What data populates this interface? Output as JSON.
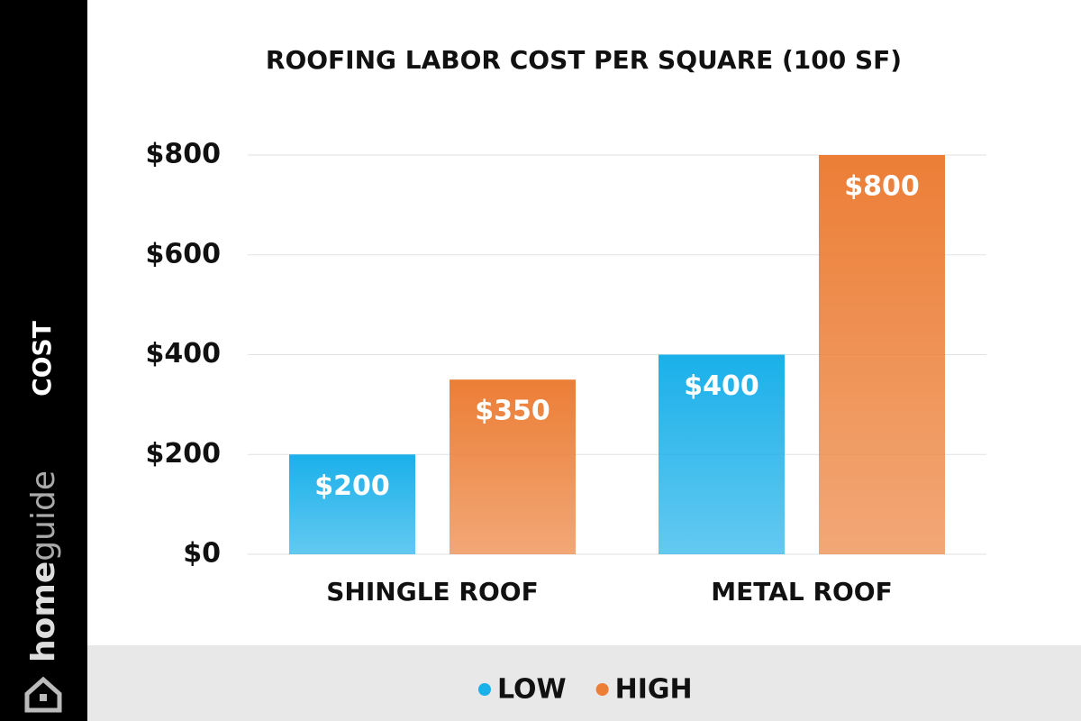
{
  "chart_data": {
    "type": "bar",
    "title": "ROOFING LABOR COST PER SQUARE (100 SF)",
    "y_label": "COST",
    "categories": [
      "SHINGLE ROOF",
      "METAL ROOF"
    ],
    "series": [
      {
        "name": "LOW",
        "color": "#1ab0ea",
        "values": [
          200,
          400
        ],
        "value_labels": [
          "$200",
          "$400"
        ]
      },
      {
        "name": "HIGH",
        "color": "#ec7e36",
        "values": [
          350,
          800
        ],
        "value_labels": [
          "$350",
          "$800"
        ]
      }
    ],
    "ylim": [
      0,
      800
    ],
    "yticks": [
      {
        "value": 0,
        "label": "$0"
      },
      {
        "value": 200,
        "label": "$200"
      },
      {
        "value": 400,
        "label": "$400"
      },
      {
        "value": 600,
        "label": "$600"
      },
      {
        "value": 800,
        "label": "$800"
      }
    ],
    "grid": true,
    "legend": "bottom"
  },
  "brand": [
    "home",
    "guide"
  ]
}
